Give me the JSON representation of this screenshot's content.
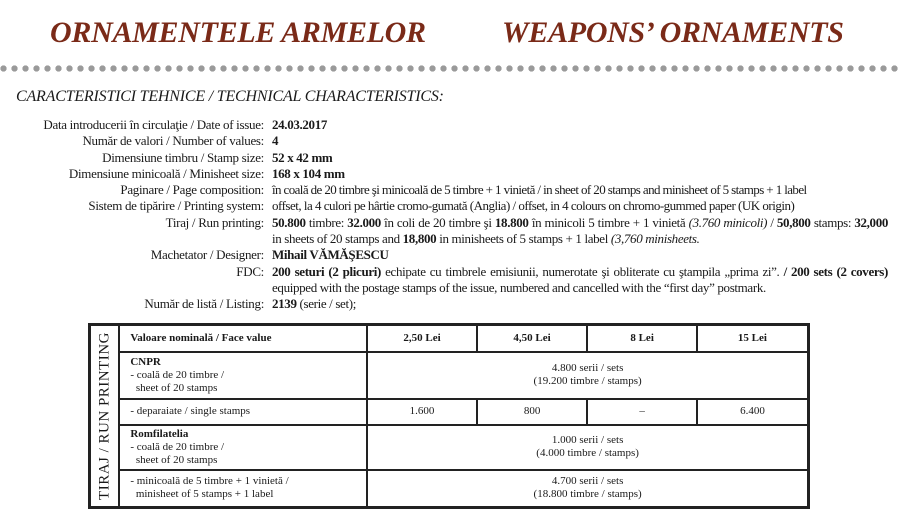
{
  "header": {
    "title_ro": "ORNAMENTELE ARMELOR",
    "title_en": "WEAPONS’ ORNAMENTS",
    "title_color": "#7a2a18"
  },
  "subtitle": "CARACTERISTICI TEHNICE / TECHNICAL CHARACTERISTICS:",
  "specs": {
    "date_label": "Data introducerii în circulaţie / Date of issue:",
    "date": "24.03.2017",
    "values_label": "Număr de valori / Number of values:",
    "values": "4",
    "stamp_label": "Dimensiune timbru / Stamp size:",
    "stamp": "52 x 42 mm",
    "mini_label": "Dimensiune minicoală / Minisheet size:",
    "mini": "168 x 104 mm",
    "page_label": "Paginare / Page composition:",
    "page": "în coală de 20 timbre şi minicoală de 5 timbre + 1 vinietă / in sheet of 20 stamps and minisheet of 5 stamps + 1 label",
    "print_label": "Sistem de tipărire / Printing system:",
    "print": "offset, la 4 culori pe hârtie cromo-gumată (Anglia) / offset, in 4 colours on chromo-gummed paper (UK origin)",
    "run_label": "Tiraj / Run printing:",
    "run": {
      "a1": "50.800",
      "a2": " timbre: ",
      "a3": "32.000",
      "a4": " în coli de 20 timbre şi ",
      "a5": "18.800",
      "a6": " în minicoli 5 timbre + 1 vinietă ",
      "a7": "(3.760 minicoli)",
      "a8": " / ",
      "b1": "50,800",
      "b2": " stamps: ",
      "b3": "32,000",
      "b4": " in sheets of 20 stamps and ",
      "b5": "18,800",
      "b6": " in minisheets of 5 stamps + 1 label ",
      "b7": "(3,760 minisheets."
    },
    "designer_label": "Machetator / Designer:",
    "designer": "Mihail VĂMĂŞESCU",
    "fdc_label": "FDC:",
    "fdc": {
      "a1": "200 seturi (2 plicuri)",
      "a2": " echipate cu timbrele emisiunii, numerotate şi obliterate cu ştampila „prima zi”. ",
      "a3": "/ 200 sets (2 covers)",
      "a4": " equipped with the postage stamps of the issue, numbered and cancelled with the “first day” postmark."
    },
    "listing_label": "Număr de listă / Listing:",
    "listing": "2139",
    "listing_note": " (serie / set);"
  },
  "table": {
    "side_label": "TIRAJ / RUN PRINTING",
    "headers": [
      "Valoare nominală / Face value",
      "2,50 Lei",
      "4,50 Lei",
      "8 Lei",
      "15 Lei"
    ],
    "cnpr": {
      "name": "CNPR",
      "desc1": "- coală de 20 timbre /",
      "desc2": "sheet of 20 stamps",
      "v1": "4.800 serii / sets",
      "v2": "(19.200 timbre / stamps)"
    },
    "single": {
      "label": "- deparaiate / single stamps",
      "values": [
        "1.600",
        "800",
        "–",
        "6.400"
      ]
    },
    "romfil": {
      "name": "Romfilatelia",
      "desc1": "- coală de 20 timbre /",
      "desc2": "sheet of 20 stamps",
      "v1": "1.000 serii / sets",
      "v2": "(4.000 timbre / stamps)"
    },
    "mini": {
      "desc1": "- minicoală de 5 timbre + 1 vinietă /",
      "desc2": "minisheet of 5 stamps + 1 label",
      "v1": "4.700 serii / sets",
      "v2": "(18.800 timbre / stamps)"
    }
  }
}
